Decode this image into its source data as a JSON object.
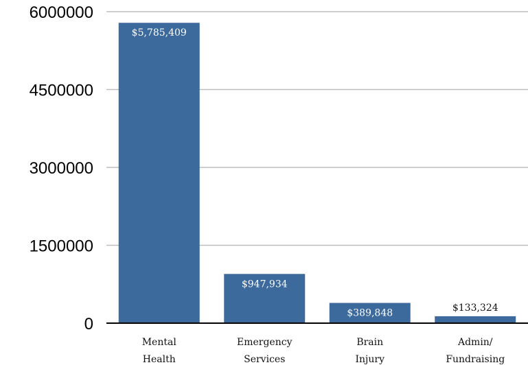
{
  "chart_data": {
    "type": "bar",
    "categories": [
      [
        "Mental",
        "Health"
      ],
      [
        "Emergency",
        "Services"
      ],
      [
        "Brain",
        "Injury"
      ],
      [
        "Admin/",
        "Fundraising"
      ]
    ],
    "values": [
      5785409,
      947934,
      389848,
      133324
    ],
    "data_labels": [
      "$5,785,409",
      "$947,934",
      "$389,848",
      "$133,324"
    ],
    "y_ticks": [
      "0",
      "1500000",
      "3000000",
      "4500000",
      "6000000"
    ],
    "ylim": [
      0,
      6000000
    ],
    "grid": true,
    "bar_color": "#3d6a9c",
    "grid_color": "#bdbdbd",
    "axis_color": "#000000"
  }
}
